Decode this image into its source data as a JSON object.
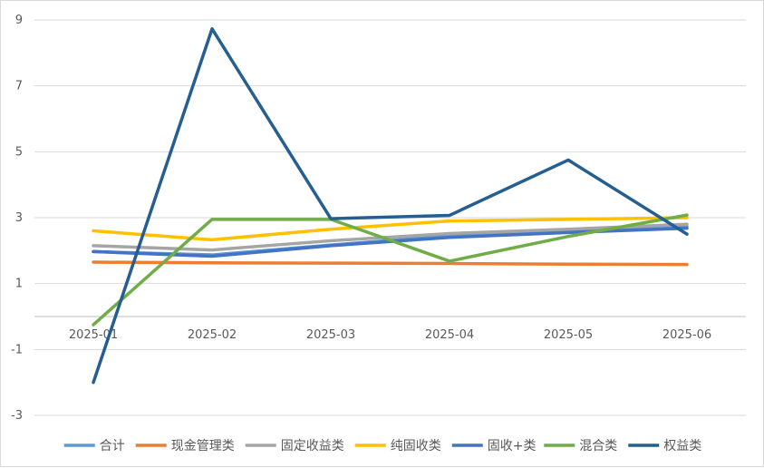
{
  "chart_data": {
    "type": "line",
    "title": "",
    "xlabel": "",
    "ylabel": "",
    "categories": [
      "2025-01",
      "2025-02",
      "2025-03",
      "2025-04",
      "2025-05",
      "2025-06"
    ],
    "ylim": [
      -3,
      9
    ],
    "yticks": [
      9,
      7,
      5,
      3,
      1,
      -1,
      -3
    ],
    "grid": true,
    "legend_position": "bottom",
    "series": [
      {
        "name": "合计",
        "color": "#5b9bd5",
        "values": [
          1.97,
          1.87,
          2.17,
          2.45,
          2.6,
          2.73
        ]
      },
      {
        "name": "现金管理类",
        "color": "#ed7d31",
        "values": [
          1.65,
          1.63,
          1.62,
          1.61,
          1.59,
          1.58
        ]
      },
      {
        "name": "固定收益类",
        "color": "#a5a5a5",
        "values": [
          2.15,
          2.02,
          2.3,
          2.52,
          2.65,
          2.8
        ]
      },
      {
        "name": "纯固收类",
        "color": "#ffc000",
        "values": [
          2.6,
          2.33,
          2.65,
          2.9,
          2.95,
          3.0
        ]
      },
      {
        "name": "固收+类",
        "color": "#4472c4",
        "values": [
          1.97,
          1.83,
          2.15,
          2.4,
          2.55,
          2.68
        ]
      },
      {
        "name": "混合类",
        "color": "#70ad47",
        "values": [
          -0.25,
          2.95,
          2.95,
          1.68,
          2.43,
          3.08
        ]
      },
      {
        "name": "权益类",
        "color": "#255e91",
        "values": [
          -2.0,
          8.73,
          2.97,
          3.07,
          4.75,
          2.5
        ]
      }
    ]
  }
}
